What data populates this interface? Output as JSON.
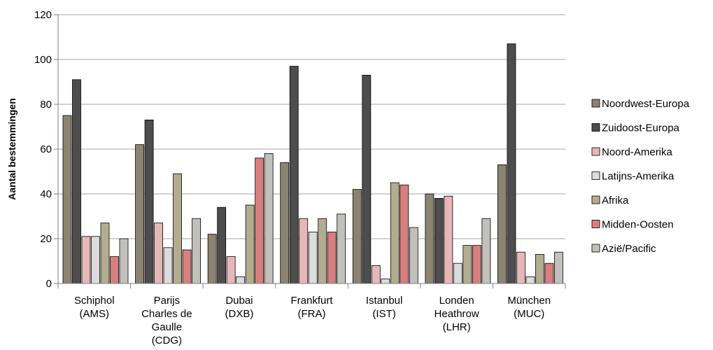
{
  "chart_data": {
    "type": "bar",
    "title": "",
    "xlabel": "",
    "ylabel": "Aantal bestemmingen",
    "ylim": [
      0,
      120
    ],
    "yticks": [
      0,
      20,
      40,
      60,
      80,
      100,
      120
    ],
    "grid": true,
    "legend_position": "right",
    "categories": [
      [
        "Schiphol",
        "(AMS)"
      ],
      [
        "Parijs",
        "Charles de",
        "Gaulle",
        "(CDG)"
      ],
      [
        "Dubai",
        "(DXB)"
      ],
      [
        "Frankfurt",
        "(FRA)"
      ],
      [
        "Istanbul",
        "(IST)"
      ],
      [
        "Londen",
        "Heathrow",
        "(LHR)"
      ],
      [
        "München",
        "(MUC)"
      ]
    ],
    "series": [
      {
        "name": "Noordwest-Europa",
        "color": "#8c8470",
        "values": [
          75,
          62,
          22,
          54,
          42,
          40,
          53
        ]
      },
      {
        "name": "Zuidoost-Europa",
        "color": "#4d4d4d",
        "values": [
          91,
          73,
          34,
          97,
          93,
          38,
          107
        ]
      },
      {
        "name": "Noord-Amerika",
        "color": "#e7b7b7",
        "values": [
          21,
          27,
          12,
          29,
          8,
          39,
          14
        ]
      },
      {
        "name": "Latijns-Amerika",
        "color": "#dcdcdc",
        "values": [
          21,
          16,
          3,
          23,
          2,
          9,
          3
        ]
      },
      {
        "name": "Afrika",
        "color": "#b2ad90",
        "values": [
          27,
          49,
          35,
          29,
          45,
          17,
          13
        ]
      },
      {
        "name": "Midden-Oosten",
        "color": "#d87f7f",
        "values": [
          12,
          15,
          56,
          23,
          44,
          17,
          9
        ]
      },
      {
        "name": "Azië/Pacific",
        "color": "#c2c0bb",
        "values": [
          20,
          29,
          58,
          31,
          25,
          29,
          14
        ]
      }
    ]
  }
}
